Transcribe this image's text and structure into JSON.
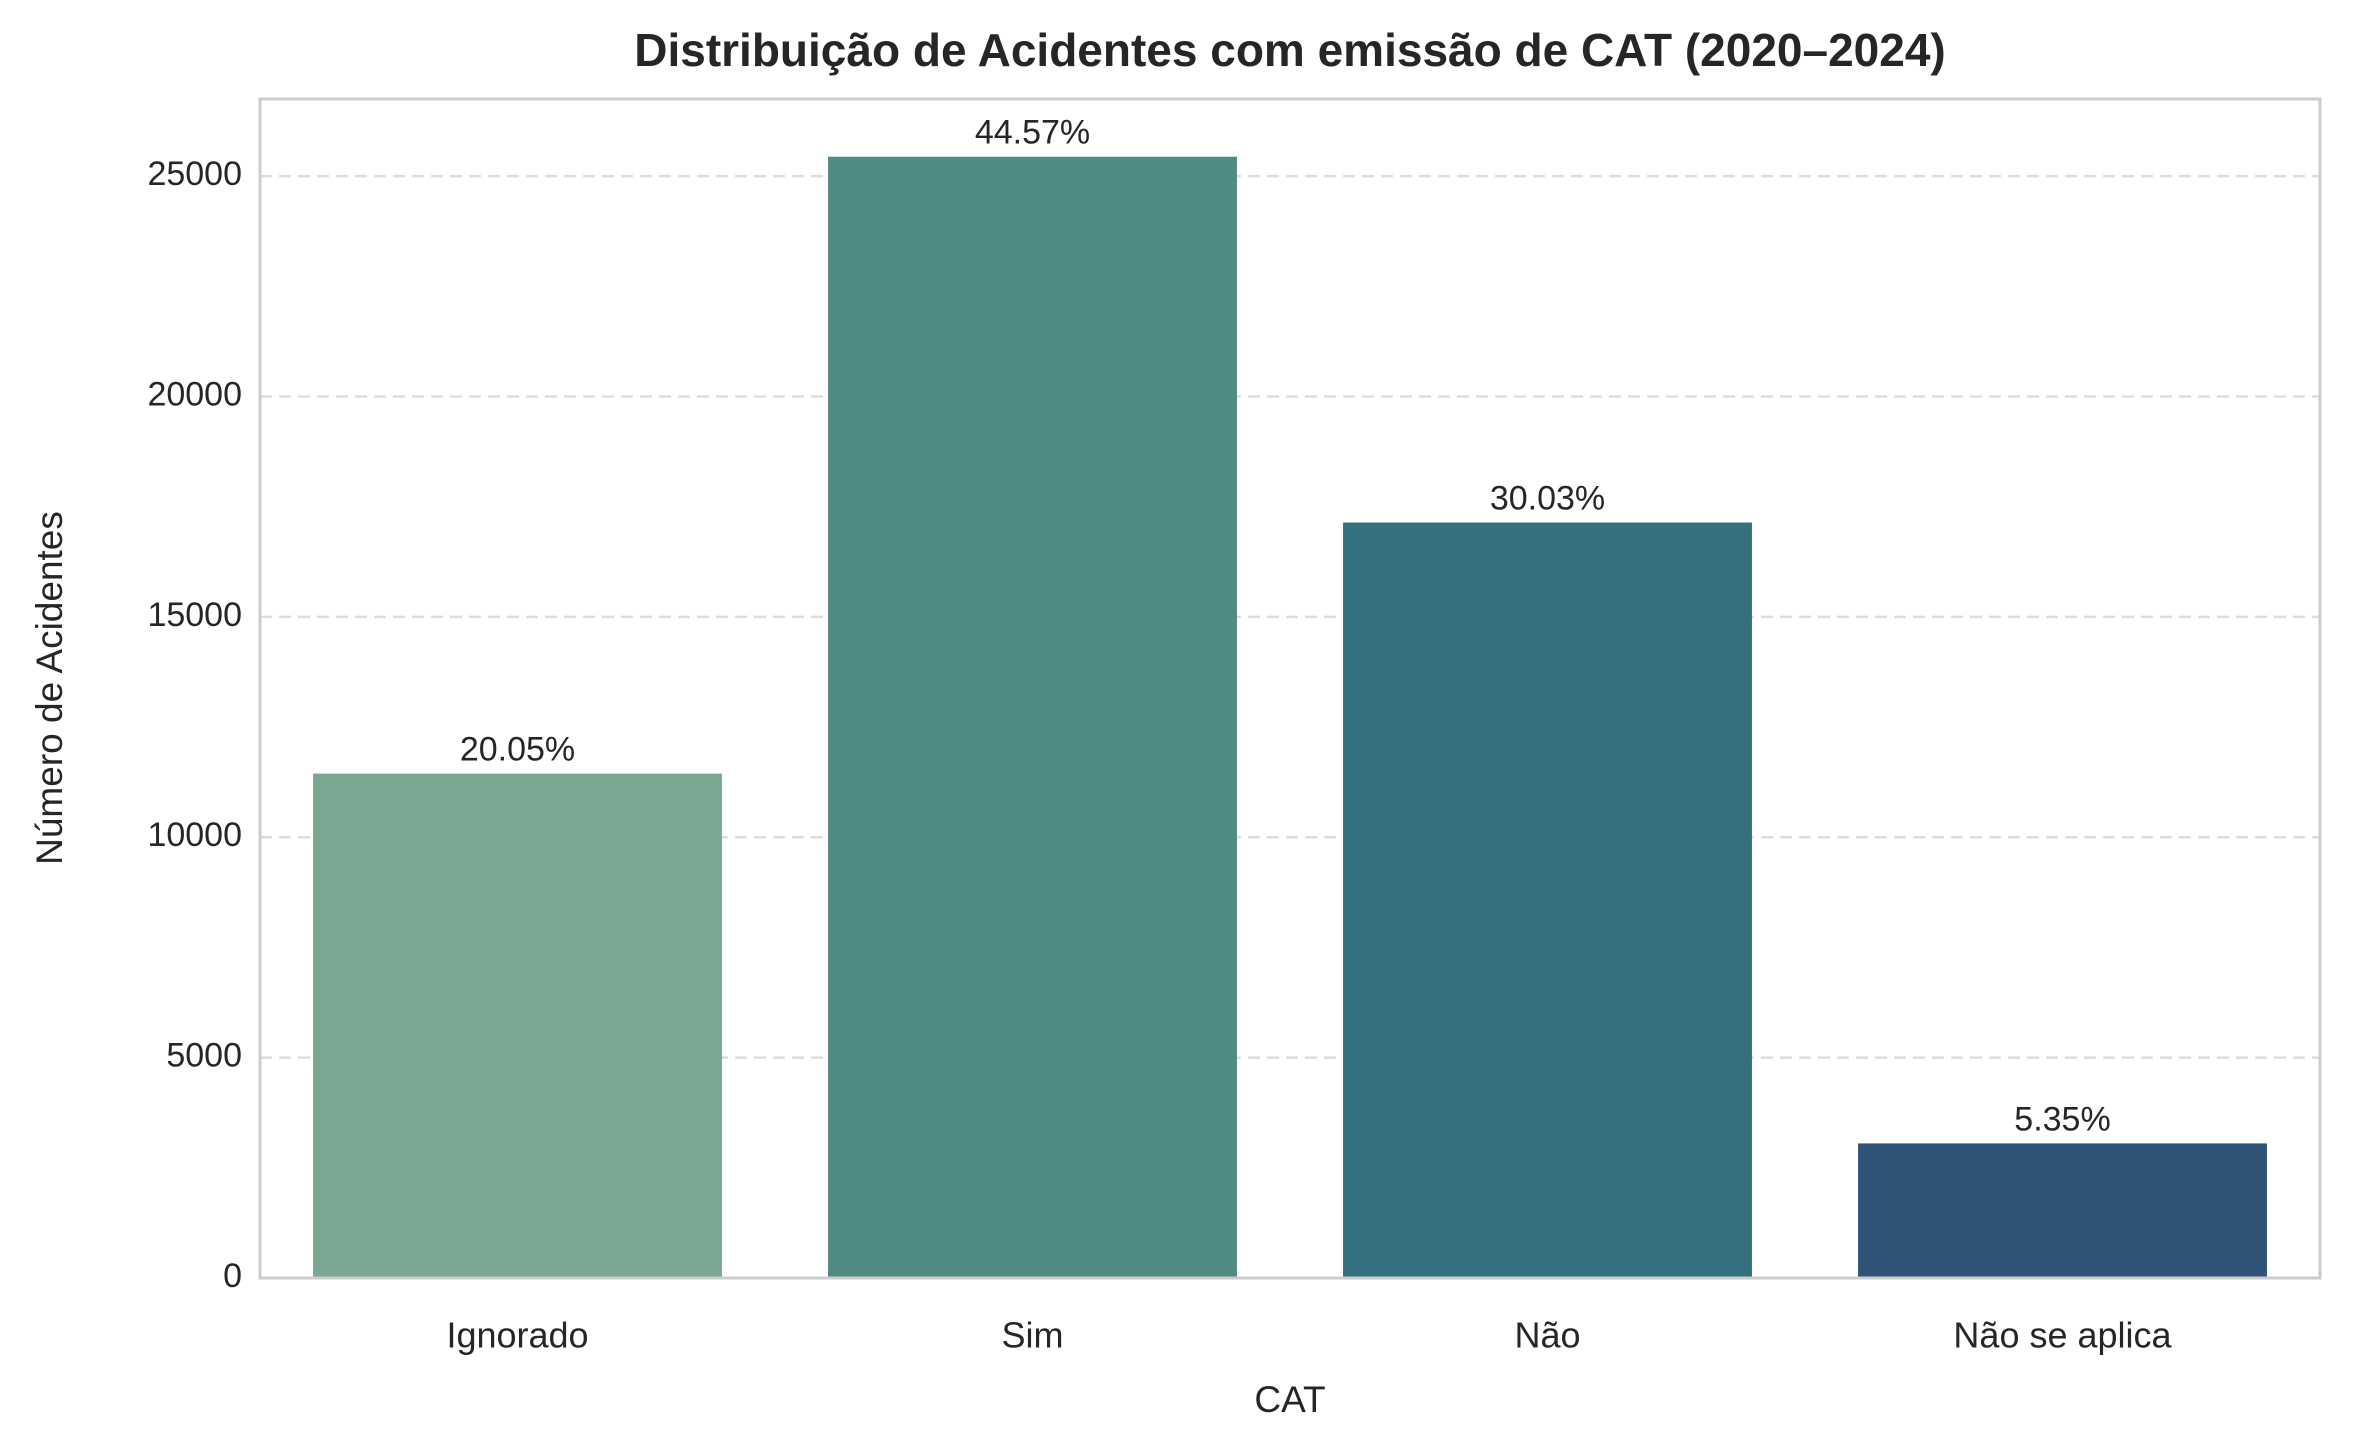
{
  "chart_data": {
    "type": "bar",
    "title": "Distribuição de Acidentes com emissão de CAT (2020–2024)",
    "x_label": "CAT",
    "y_label": "Número de Acidentes",
    "categories": [
      "Ignorado",
      "Sim",
      "Não",
      "Não se aplica"
    ],
    "values": [
      11444,
      25440,
      17141,
      3054
    ],
    "colors": [
      "#79a892",
      "#508b83",
      "#35707e",
      "#2f5478"
    ],
    "annotations": [
      "20.05%",
      "44.57%",
      "30.03%",
      "5.35%"
    ],
    "ylim": [
      0,
      26750
    ],
    "yticks": [
      0,
      5000,
      10000,
      15000,
      20000,
      25000
    ],
    "grid": true
  }
}
